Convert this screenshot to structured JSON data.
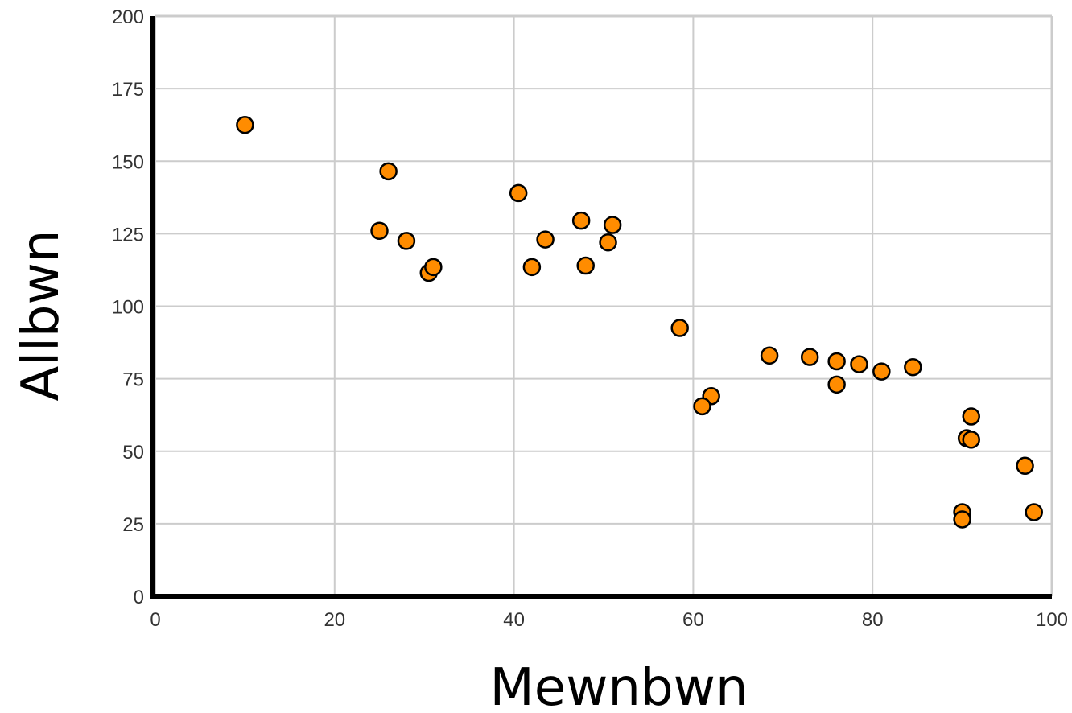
{
  "colors": {
    "marker": "#ff8c00",
    "marker_edge": "#000000",
    "grid": "#cccccc",
    "axis": "#000000"
  },
  "chart_data": {
    "type": "scatter",
    "title": "",
    "xlabel": "Mewnbwn",
    "ylabel": "Allbwn",
    "xlim": [
      0,
      100
    ],
    "ylim": [
      0,
      200
    ],
    "xticks": [
      "0",
      "20",
      "40",
      "60",
      "80",
      "100"
    ],
    "yticks": [
      "0",
      "25",
      "50",
      "75",
      "100",
      "125",
      "150",
      "175",
      "200"
    ],
    "grid": true,
    "legend": "none",
    "series": [
      {
        "x": [
          10,
          26,
          25,
          28,
          30.5,
          31,
          40.5,
          43.5,
          42,
          47.5,
          48,
          50.5,
          51,
          58.5,
          62,
          61,
          68.5,
          73,
          76,
          76,
          78.5,
          81,
          84.5,
          91,
          90.5,
          91,
          90,
          90,
          97,
          98
        ],
        "y": [
          162.5,
          146.5,
          126,
          122.5,
          111.5,
          113.5,
          139,
          123,
          113.5,
          129.5,
          114,
          122,
          128,
          92.5,
          69,
          65.5,
          83,
          82.5,
          81,
          73,
          80,
          77.5,
          79,
          62,
          54.5,
          54,
          29,
          26.5,
          45,
          29
        ]
      }
    ]
  }
}
